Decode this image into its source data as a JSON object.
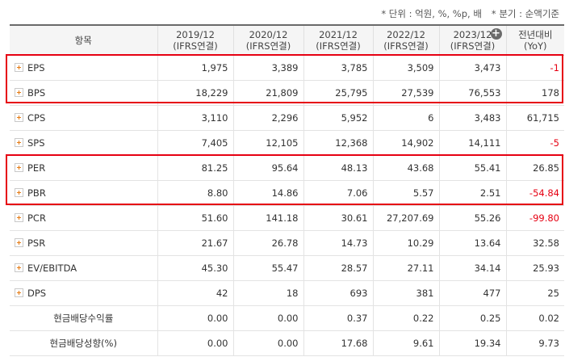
{
  "units": {
    "unit_label": "* 단위 : 억원, %, %p, 배",
    "period_label": "* 분기 : 순액기준"
  },
  "header": {
    "item_label": "항목",
    "periods": [
      {
        "year": "2019/12",
        "basis": "(IFRS연결)"
      },
      {
        "year": "2020/12",
        "basis": "(IFRS연결)"
      },
      {
        "year": "2021/12",
        "basis": "(IFRS연결)"
      },
      {
        "year": "2022/12",
        "basis": "(IFRS연결)"
      },
      {
        "year": "2023/12",
        "basis": "(IFRS연결)"
      }
    ],
    "yoy_label": "전년대비",
    "yoy_sub": "(YoY)"
  },
  "rows": [
    {
      "label": "EPS",
      "values": [
        "1,975",
        "3,389",
        "3,785",
        "3,509",
        "3,473"
      ],
      "yoy": "-1"
    },
    {
      "label": "BPS",
      "values": [
        "18,229",
        "21,809",
        "25,795",
        "27,539",
        "76,553"
      ],
      "yoy": "178"
    },
    {
      "label": "CPS",
      "values": [
        "3,110",
        "2,296",
        "5,952",
        "6",
        "3,483"
      ],
      "yoy": "61,715"
    },
    {
      "label": "SPS",
      "values": [
        "7,405",
        "12,105",
        "12,368",
        "14,902",
        "14,111"
      ],
      "yoy": "-5"
    },
    {
      "label": "PER",
      "values": [
        "81.25",
        "95.64",
        "48.13",
        "43.68",
        "55.41"
      ],
      "yoy": "26.85"
    },
    {
      "label": "PBR",
      "values": [
        "8.80",
        "14.86",
        "7.06",
        "5.57",
        "2.51"
      ],
      "yoy": "-54.84"
    },
    {
      "label": "PCR",
      "values": [
        "51.60",
        "141.18",
        "30.61",
        "27,207.69",
        "55.26"
      ],
      "yoy": "-99.80"
    },
    {
      "label": "PSR",
      "values": [
        "21.67",
        "26.78",
        "14.73",
        "10.29",
        "13.64"
      ],
      "yoy": "32.58"
    },
    {
      "label": "EV/EBITDA",
      "values": [
        "45.30",
        "55.47",
        "28.57",
        "27.11",
        "34.14"
      ],
      "yoy": "25.93"
    },
    {
      "label": "DPS",
      "values": [
        "42",
        "18",
        "693",
        "381",
        "477"
      ],
      "yoy": "25"
    },
    {
      "label": "현금배당수익률",
      "values": [
        "0.00",
        "0.00",
        "0.37",
        "0.22",
        "0.25"
      ],
      "yoy": "0.02"
    },
    {
      "label": "현금배당성향(%)",
      "values": [
        "0.00",
        "0.00",
        "17.68",
        "9.61",
        "19.34"
      ],
      "yoy": "9.73"
    }
  ],
  "colors": {
    "highlight": "#e60012",
    "negative": "#e60012",
    "expand_icon": "#e57a12"
  }
}
